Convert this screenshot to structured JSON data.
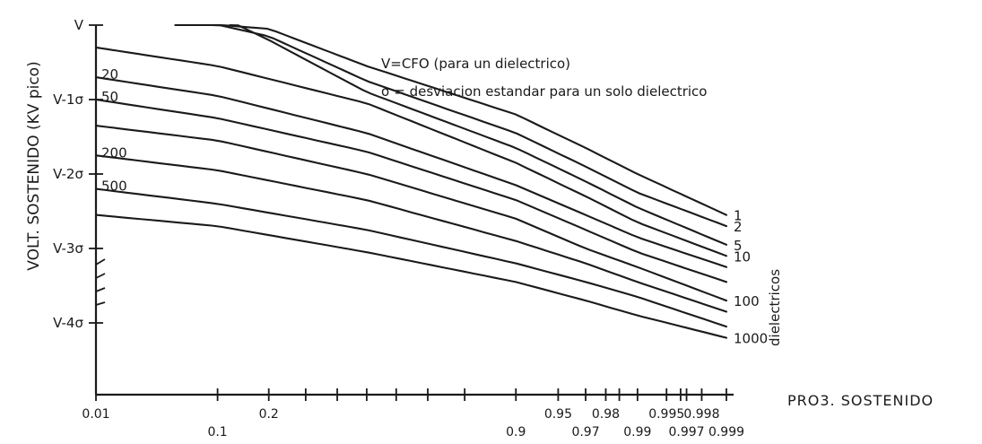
{
  "chart_data": {
    "type": "line",
    "title": "",
    "xlabel": "PRO3. SOSTENIDO",
    "ylabel": "VOLT. SOSTENIDO (KV pico)",
    "x_scale": "normal probability",
    "y_ticks": [
      {
        "label": "V",
        "value": 0
      },
      {
        "label": "V-1σ",
        "value": -1
      },
      {
        "label": "V-2σ",
        "value": -2
      },
      {
        "label": "V-3σ",
        "value": -3
      },
      {
        "label": "V-4σ",
        "value": -4
      }
    ],
    "x_ticks_upper": [
      {
        "label": "0.01",
        "value": 0.01
      },
      {
        "label": "0.2",
        "value": 0.2
      },
      {
        "label": "0.95",
        "value": 0.95
      },
      {
        "label": "0.98",
        "value": 0.98
      },
      {
        "label": "0.995",
        "value": 0.995
      },
      {
        "label": "0.998",
        "value": 0.998
      }
    ],
    "x_ticks_lower": [
      {
        "label": "0.1",
        "value": 0.1
      },
      {
        "label": "0.9",
        "value": 0.9
      },
      {
        "label": "0.97",
        "value": 0.97
      },
      {
        "label": "0.99",
        "value": 0.99
      },
      {
        "label": "0.997",
        "value": 0.997
      },
      {
        "label": "0.999",
        "value": 0.999
      }
    ],
    "annotations": [
      "V=CFO (para un dielectrico)",
      "σ = desviacion estandar para un solo dielectrico"
    ],
    "series_group_label": "dielectricos",
    "series": [
      {
        "name": "1",
        "points": [
          [
            0.05,
            0.05
          ],
          [
            0.2,
            -0.05
          ],
          [
            0.5,
            -0.55
          ],
          [
            0.9,
            -1.2
          ],
          [
            0.97,
            -1.65
          ],
          [
            0.99,
            -2.0
          ],
          [
            0.999,
            -2.55
          ]
        ]
      },
      {
        "name": "2",
        "points": [
          [
            0.08,
            0.05
          ],
          [
            0.2,
            -0.15
          ],
          [
            0.5,
            -0.75
          ],
          [
            0.9,
            -1.45
          ],
          [
            0.97,
            -1.9
          ],
          [
            0.99,
            -2.25
          ],
          [
            0.999,
            -2.7
          ]
        ]
      },
      {
        "name": "5",
        "points": [
          [
            0.12,
            0.05
          ],
          [
            0.2,
            -0.2
          ],
          [
            0.5,
            -0.9
          ],
          [
            0.9,
            -1.65
          ],
          [
            0.97,
            -2.1
          ],
          [
            0.99,
            -2.45
          ],
          [
            0.999,
            -2.95
          ]
        ]
      },
      {
        "name": "10",
        "points": [
          [
            0.01,
            -0.3
          ],
          [
            0.1,
            -0.55
          ],
          [
            0.5,
            -1.05
          ],
          [
            0.9,
            -1.85
          ],
          [
            0.97,
            -2.3
          ],
          [
            0.99,
            -2.65
          ],
          [
            0.999,
            -3.1
          ]
        ]
      },
      {
        "name": "20",
        "points": [
          [
            0.01,
            -0.7
          ],
          [
            0.1,
            -0.95
          ],
          [
            0.5,
            -1.45
          ],
          [
            0.9,
            -2.15
          ],
          [
            0.97,
            -2.55
          ],
          [
            0.99,
            -2.85
          ],
          [
            0.999,
            -3.25
          ]
        ]
      },
      {
        "name": "50",
        "points": [
          [
            0.01,
            -1.0
          ],
          [
            0.1,
            -1.25
          ],
          [
            0.5,
            -1.7
          ],
          [
            0.9,
            -2.35
          ],
          [
            0.97,
            -2.75
          ],
          [
            0.99,
            -3.05
          ],
          [
            0.999,
            -3.45
          ]
        ]
      },
      {
        "name": "100",
        "points": [
          [
            0.01,
            -1.35
          ],
          [
            0.1,
            -1.55
          ],
          [
            0.5,
            -2.0
          ],
          [
            0.9,
            -2.6
          ],
          [
            0.97,
            -3.0
          ],
          [
            0.99,
            -3.25
          ],
          [
            0.999,
            -3.7
          ]
        ]
      },
      {
        "name": "200",
        "points": [
          [
            0.01,
            -1.75
          ],
          [
            0.1,
            -1.95
          ],
          [
            0.5,
            -2.35
          ],
          [
            0.9,
            -2.9
          ],
          [
            0.97,
            -3.2
          ],
          [
            0.99,
            -3.45
          ],
          [
            0.999,
            -3.85
          ]
        ]
      },
      {
        "name": "500",
        "points": [
          [
            0.01,
            -2.2
          ],
          [
            0.1,
            -2.4
          ],
          [
            0.5,
            -2.75
          ],
          [
            0.9,
            -3.2
          ],
          [
            0.97,
            -3.45
          ],
          [
            0.99,
            -3.65
          ],
          [
            0.999,
            -4.05
          ]
        ]
      },
      {
        "name": "1000",
        "points": [
          [
            0.01,
            -2.55
          ],
          [
            0.1,
            -2.7
          ],
          [
            0.5,
            -3.05
          ],
          [
            0.9,
            -3.45
          ],
          [
            0.97,
            -3.7
          ],
          [
            0.99,
            -3.9
          ],
          [
            0.999,
            -4.2
          ]
        ]
      }
    ],
    "inline_curve_labels": [
      "20",
      "50",
      "200",
      "500"
    ],
    "right_curve_labels": [
      "1",
      "2",
      "5",
      "10",
      "100",
      "1000"
    ],
    "grid": false
  }
}
